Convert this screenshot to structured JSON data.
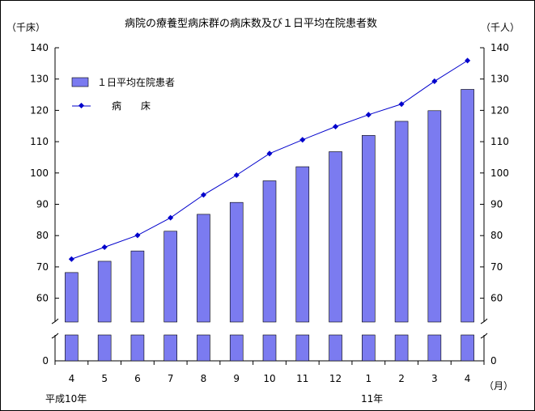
{
  "chart_data": {
    "type": "bar+line",
    "title": "病院の療養型病床群の病床数及び１日平均在院患者数",
    "left_axis_unit": "（千床）",
    "right_axis_unit": "（千人）",
    "x_unit": "（月）",
    "categories": [
      "4",
      "5",
      "6",
      "7",
      "8",
      "9",
      "10",
      "11",
      "12",
      "1",
      "2",
      "3",
      "4"
    ],
    "year_labels": [
      "平成10年",
      "11年"
    ],
    "y_ticks": [
      "140",
      "130",
      "120",
      "110",
      "100",
      "90",
      "80",
      "70",
      "60",
      "0"
    ],
    "axis_break": true,
    "legend_position": "top-left",
    "series": [
      {
        "name": "１日平均在院患者",
        "kind": "bar",
        "axis": "right",
        "color": "#7b7bf0",
        "values": [
          68.2,
          71.8,
          75.1,
          81.4,
          86.8,
          90.6,
          97.5,
          102.0,
          106.8,
          112.0,
          116.5,
          119.9,
          126.7
        ]
      },
      {
        "name": "病　　床",
        "kind": "line",
        "axis": "left",
        "color": "#0000cc",
        "values": [
          72.5,
          76.3,
          80.1,
          85.7,
          93.0,
          99.3,
          106.2,
          110.6,
          114.8,
          118.6,
          122.0,
          129.3,
          135.9
        ]
      }
    ]
  }
}
